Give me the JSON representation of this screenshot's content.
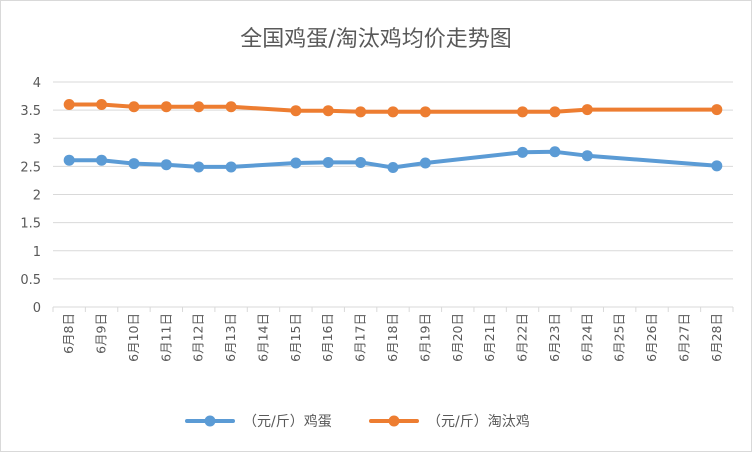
{
  "chart_data": {
    "type": "line",
    "title": "全国鸡蛋/淘汰鸡均价走势图",
    "xlabel": "",
    "ylabel": "",
    "ylim": [
      0,
      4
    ],
    "yticks": [
      "0",
      "0.5",
      "1",
      "1.5",
      "2",
      "2.5",
      "3",
      "3.5",
      "4"
    ],
    "grid": true,
    "legend_position": "bottom",
    "categories": [
      "6月8日",
      "6月9日",
      "6月10日",
      "6月11日",
      "6月12日",
      "6月13日",
      "6月14日",
      "6月15日",
      "6月16日",
      "6月17日",
      "6月18日",
      "6月19日",
      "6月20日",
      "6月21日",
      "6月22日",
      "6月23日",
      "6月24日",
      "6月25日",
      "6月26日",
      "6月27日",
      "6月28日"
    ],
    "series": [
      {
        "name": "（元/斤）鸡蛋",
        "color": "#5b9bd5",
        "values": [
          2.61,
          2.61,
          2.55,
          2.53,
          2.49,
          2.49,
          null,
          2.56,
          2.57,
          2.57,
          2.48,
          2.56,
          null,
          null,
          2.75,
          2.76,
          2.69,
          null,
          null,
          null,
          2.51
        ]
      },
      {
        "name": "（元/斤）淘汰鸡",
        "color": "#ed7d31",
        "values": [
          3.6,
          3.6,
          3.56,
          3.56,
          3.56,
          3.56,
          null,
          3.49,
          3.49,
          3.47,
          3.47,
          3.47,
          null,
          null,
          3.47,
          3.47,
          3.51,
          null,
          null,
          null,
          3.51
        ]
      }
    ]
  }
}
